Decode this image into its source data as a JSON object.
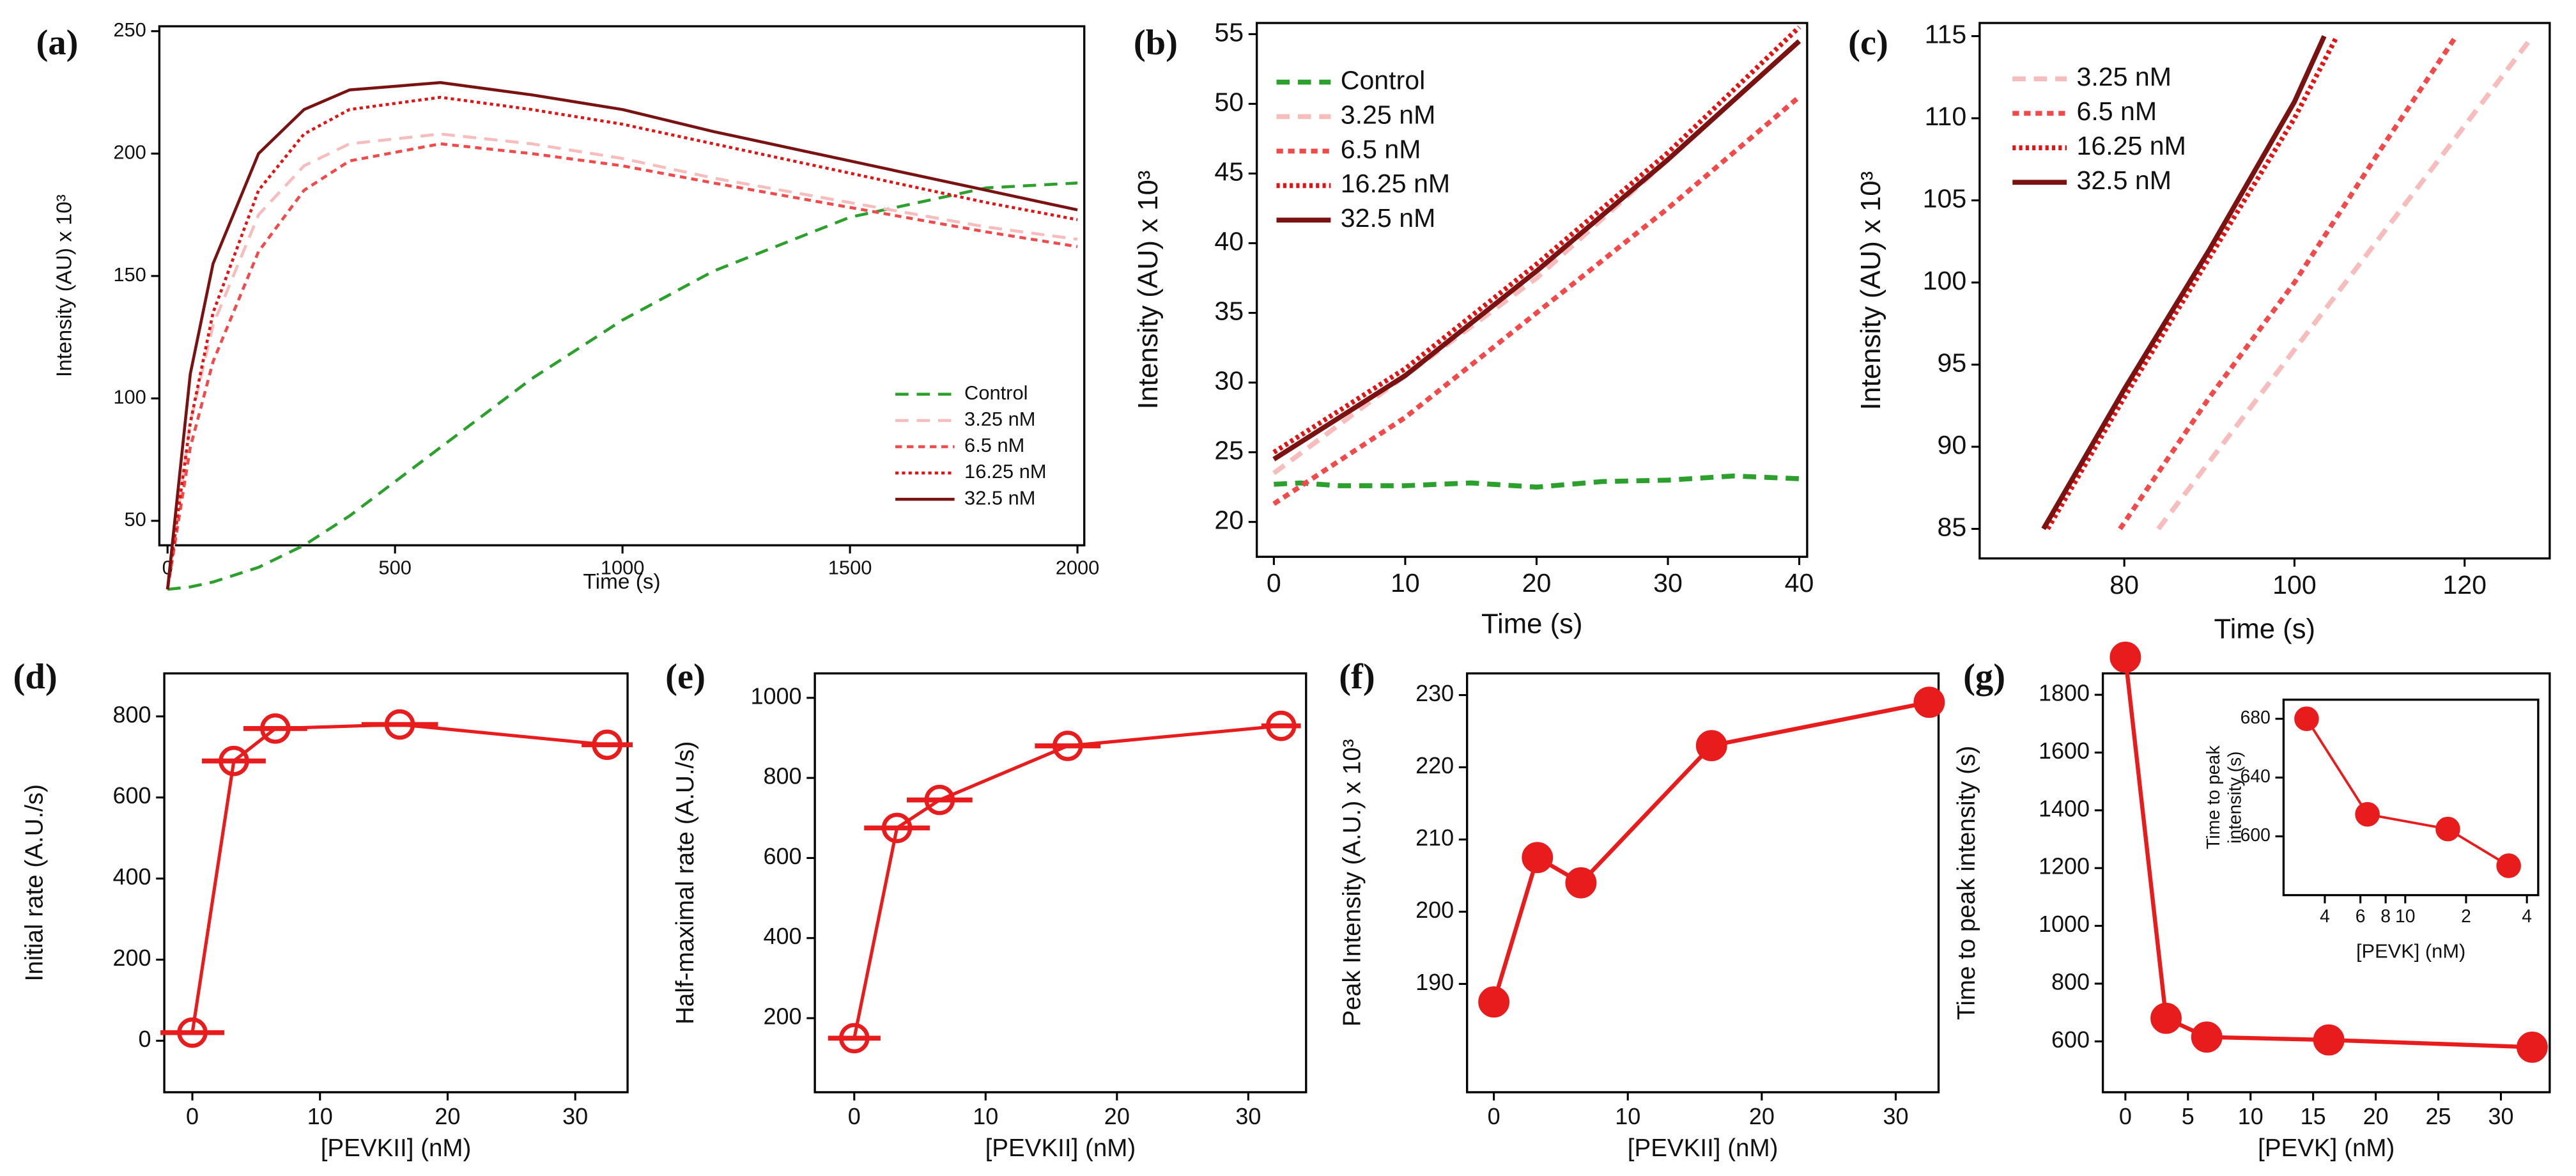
{
  "chart_data": [
    {
      "type": "line",
      "panel_label": "(a)",
      "xlabel": "Time (s)",
      "ylabel": "Intensity (AU) x 10³",
      "xlim": [
        -18,
        2015
      ],
      "ylim": [
        40,
        252
      ],
      "xticks": [
        0,
        500,
        1000,
        1500,
        2000
      ],
      "yticks": [
        50,
        100,
        150,
        200,
        250
      ],
      "legend": "lower right",
      "x": [
        0,
        50,
        100,
        200,
        300,
        400,
        600,
        800,
        1000,
        1200,
        1500,
        1800,
        2000
      ],
      "series": [
        {
          "name": "Control",
          "color": "#2ca02c",
          "linestyle": "dashed",
          "values": [
            22,
            23,
            25,
            31,
            40,
            52,
            80,
            108,
            132,
            152,
            174,
            186,
            188
          ]
        },
        {
          "name": "3.25 nM",
          "color": "#f7bcbc",
          "linestyle": "dashed",
          "values": [
            22,
            90,
            130,
            175,
            195,
            204,
            208,
            204,
            198,
            190,
            180,
            170,
            165
          ]
        },
        {
          "name": "6.5 nM",
          "color": "#f04a4a",
          "linestyle": "short-dashed",
          "values": [
            22,
            80,
            115,
            160,
            185,
            197,
            204,
            200,
            195,
            188,
            178,
            168,
            162
          ]
        },
        {
          "name": "16.25 nM",
          "color": "#e01414",
          "linestyle": "dotted",
          "values": [
            22,
            90,
            135,
            185,
            208,
            218,
            223,
            218,
            212,
            204,
            192,
            180,
            173
          ]
        },
        {
          "name": "32.5 nM",
          "color": "#7a1212",
          "linestyle": "solid",
          "values": [
            22,
            110,
            155,
            200,
            218,
            226,
            229,
            224,
            218,
            209,
            197,
            185,
            177
          ]
        }
      ]
    },
    {
      "type": "line",
      "panel_label": "(b)",
      "xlabel": "Time (s)",
      "ylabel": "Intensity (AU) x 10³",
      "xlim": [
        -1.3,
        40.6
      ],
      "ylim": [
        17.5,
        55.8
      ],
      "xticks": [
        0,
        10,
        20,
        30,
        40
      ],
      "yticks": [
        20,
        25,
        30,
        35,
        40,
        45,
        50,
        55
      ],
      "legend": "upper left",
      "series": [
        {
          "name": "Control",
          "color": "#2ca02c",
          "linestyle": "dashed",
          "x": [
            0,
            2,
            5,
            10,
            15,
            20,
            25,
            30,
            35,
            40
          ],
          "values": [
            22.7,
            22.8,
            22.6,
            22.6,
            22.8,
            22.5,
            22.9,
            23.0,
            23.3,
            23.1
          ]
        },
        {
          "name": "3.25 nM",
          "color": "#f7bcbc",
          "linestyle": "dashed",
          "x": [
            0,
            10,
            20,
            30,
            40
          ],
          "values": [
            23.5,
            30.5,
            37.5,
            46,
            54.5
          ]
        },
        {
          "name": "6.5 nM",
          "color": "#f04a4a",
          "linestyle": "short-dashed",
          "x": [
            0,
            10,
            20,
            30,
            40
          ],
          "values": [
            21.3,
            27.5,
            35,
            42.5,
            50.5
          ]
        },
        {
          "name": "16.25 nM",
          "color": "#e01414",
          "linestyle": "dotted",
          "x": [
            0,
            10,
            20,
            30,
            40
          ],
          "values": [
            25,
            31,
            38.5,
            46.5,
            55.5
          ]
        },
        {
          "name": "32.5 nM",
          "color": "#7a1212",
          "linestyle": "solid",
          "x": [
            0,
            10,
            20,
            30,
            40
          ],
          "values": [
            24.5,
            30.5,
            38,
            46,
            54.5
          ]
        }
      ]
    },
    {
      "type": "line",
      "panel_label": "(c)",
      "xlabel": "Time (s)",
      "ylabel": "Intensity (AU) x 10³",
      "xlim": [
        63,
        130
      ],
      "ylim": [
        83.2,
        115.8
      ],
      "xticks": [
        80,
        100,
        120
      ],
      "yticks": [
        85,
        90,
        95,
        100,
        105,
        110,
        115
      ],
      "legend": "upper left",
      "series": [
        {
          "name": "3.25 nM",
          "color": "#f7bcbc",
          "linestyle": "dashed",
          "x": [
            84,
            95,
            106,
            117,
            128
          ],
          "values": [
            85,
            92.5,
            100,
            107.5,
            115
          ]
        },
        {
          "name": "6.5 nM",
          "color": "#f04a4a",
          "linestyle": "short-dashed",
          "x": [
            79.5,
            90,
            100,
            110,
            119
          ],
          "values": [
            85,
            93,
            100,
            108,
            115
          ]
        },
        {
          "name": "16.25 nM",
          "color": "#e01414",
          "linestyle": "dotted",
          "x": [
            71,
            80,
            90,
            100,
            105
          ],
          "values": [
            85,
            93,
            101.5,
            110,
            115
          ]
        },
        {
          "name": "32.5 nM",
          "color": "#7a1212",
          "linestyle": "solid",
          "x": [
            70.5,
            80,
            90,
            100,
            103.5
          ],
          "values": [
            85,
            93.5,
            102,
            111,
            115
          ]
        }
      ]
    },
    {
      "type": "line",
      "panel_label": "(d)",
      "xlabel": "[PEVKII] (nM)",
      "ylabel": "Initial rate (A.U./s)",
      "marker": "open-circle",
      "xlim": [
        -2.2,
        34.1
      ],
      "ylim": [
        -127,
        906
      ],
      "xticks": [
        0,
        10,
        20,
        30
      ],
      "yticks": [
        0,
        200,
        400,
        600,
        800
      ],
      "series": [
        {
          "color": "#e81c1c",
          "x": [
            0,
            3.25,
            6.5,
            16.25,
            32.5
          ],
          "values": [
            20,
            690,
            770,
            780,
            730
          ],
          "xerr": [
            2.5,
            2.5,
            2.5,
            3,
            2
          ]
        }
      ]
    },
    {
      "type": "line",
      "panel_label": "(e)",
      "xlabel": "[PEVKII] (nM)",
      "ylabel": "Half-maximal rate (A.U./s)",
      "marker": "open-circle",
      "xlim": [
        -3,
        34.4
      ],
      "ylim": [
        15,
        1061
      ],
      "xticks": [
        0,
        10,
        20,
        30
      ],
      "yticks": [
        200,
        400,
        600,
        800,
        1000
      ],
      "series": [
        {
          "color": "#e81c1c",
          "x": [
            0,
            3.25,
            6.5,
            16.25,
            32.5
          ],
          "values": [
            150,
            675,
            745,
            880,
            930
          ],
          "xerr": [
            2,
            2.5,
            2.5,
            2.5,
            1.5
          ]
        }
      ]
    },
    {
      "type": "line",
      "panel_label": "(f)",
      "xlabel": "[PEVKII] (nM)",
      "ylabel": "Peak Intensity (A.U.) x 10³",
      "marker": "filled-circle",
      "xlim": [
        -2,
        33.2
      ],
      "ylim": [
        175,
        233
      ],
      "xticks": [
        0,
        10,
        20,
        30
      ],
      "yticks": [
        190,
        200,
        210,
        220,
        230
      ],
      "series": [
        {
          "color": "#e81c1c",
          "x": [
            0,
            3.25,
            6.5,
            16.25,
            32.5
          ],
          "values": [
            187.5,
            207.5,
            204,
            223,
            229
          ]
        }
      ]
    },
    {
      "type": "line",
      "panel_label": "(g)",
      "xlabel": "[PEVK] (nM)",
      "ylabel": "Time to peak intensity (s)",
      "marker": "filled-circle",
      "xlim": [
        -1.8,
        33.9
      ],
      "ylim": [
        424,
        1874
      ],
      "xticks": [
        0,
        5,
        10,
        15,
        20,
        25,
        30
      ],
      "yticks": [
        600,
        800,
        1000,
        1200,
        1400,
        1600,
        1800
      ],
      "series": [
        {
          "color": "#e81c1c",
          "x": [
            0,
            3.25,
            6.5,
            16.25,
            32.5
          ],
          "values": [
            1930,
            680,
            615,
            605,
            580
          ]
        }
      ]
    },
    {
      "type": "line",
      "xlabel": "[PEVK] (nM)",
      "ylabel": [
        "Time to peak",
        "intensity (s)"
      ],
      "marker": "filled-circle",
      "xscale": "log",
      "xlim": [
        2.5,
        45.5
      ],
      "ylim": [
        560,
        693
      ],
      "xticks": [
        4,
        6,
        8,
        10,
        {
          "value": 20,
          "label": "2"
        },
        {
          "value": 40,
          "label": "4"
        }
      ],
      "yticks": [
        600,
        640,
        680
      ],
      "series": [
        {
          "color": "#e81c1c",
          "x": [
            3.25,
            6.5,
            16.25,
            32.5
          ],
          "values": [
            680,
            615,
            605,
            580
          ]
        }
      ]
    }
  ]
}
